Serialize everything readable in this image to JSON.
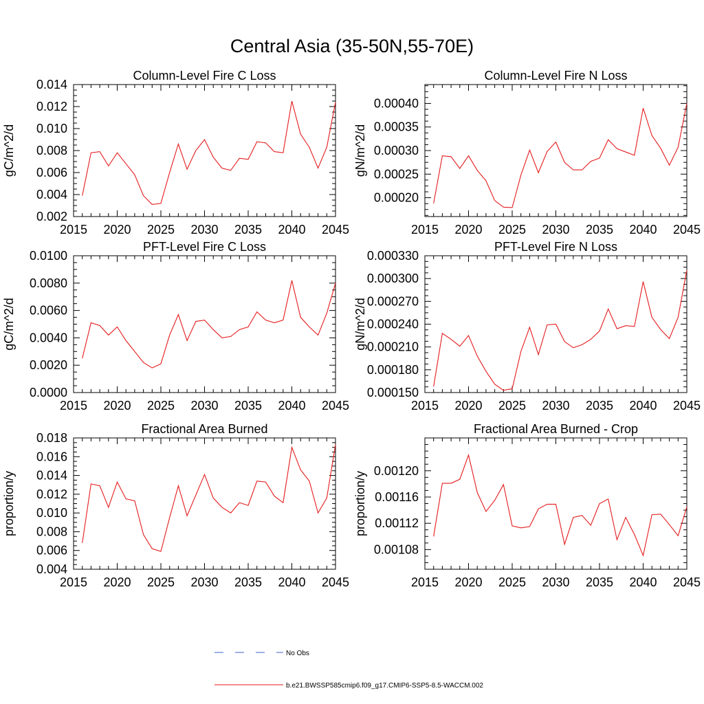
{
  "title": "Central Asia (35-50N,55-70E)",
  "colors": {
    "model_line": "#e41a1c",
    "obs_line": "#3a5fcd",
    "axis": "#000000"
  },
  "legend": {
    "obs_label": "No Obs",
    "model_label": "b.e21.BWSSP585cmip6.f09_g17.CMIP6-SSP5-8.5-WACCM.002",
    "placement": "bottom-center"
  },
  "chart_data": [
    {
      "type": "line",
      "title": "Column-Level Fire C Loss",
      "ylabel": "gC/m^2/d",
      "xlim": [
        2015,
        2045
      ],
      "ylim": [
        0.002,
        0.014
      ],
      "xticks": [
        "2015",
        "2020",
        "2025",
        "2030",
        "2035",
        "2040",
        "2045"
      ],
      "yticks": [
        "0.002",
        "0.004",
        "0.006",
        "0.008",
        "0.010",
        "0.012",
        "0.014"
      ],
      "x": [
        2016,
        2017,
        2018,
        2019,
        2020,
        2021,
        2022,
        2023,
        2024,
        2025,
        2026,
        2027,
        2028,
        2029,
        2030,
        2031,
        2032,
        2033,
        2034,
        2035,
        2036,
        2037,
        2038,
        2039,
        2040,
        2041,
        2042,
        2043,
        2044,
        2045
      ],
      "values": [
        0.0039,
        0.0078,
        0.0079,
        0.0066,
        0.0078,
        0.0068,
        0.0058,
        0.0039,
        0.0031,
        0.0032,
        0.006,
        0.0086,
        0.0063,
        0.008,
        0.009,
        0.0074,
        0.0064,
        0.0062,
        0.0073,
        0.0072,
        0.0088,
        0.0087,
        0.0079,
        0.0078,
        0.0125,
        0.0095,
        0.0083,
        0.0064,
        0.0083,
        0.0124
      ]
    },
    {
      "type": "line",
      "title": "Column-Level Fire N Loss",
      "ylabel": "gN/m^2/d",
      "xlim": [
        2015,
        2045
      ],
      "ylim": [
        0.00016,
        0.00044
      ],
      "xticks": [
        "2015",
        "2020",
        "2025",
        "2030",
        "2035",
        "2040",
        "2045"
      ],
      "yticks": [
        "0.00020",
        "0.00025",
        "0.00030",
        "0.00035",
        "0.00040"
      ],
      "ytick_values": [
        0.0002,
        0.00025,
        0.0003,
        0.00035,
        0.0004
      ],
      "x": [
        2016,
        2017,
        2018,
        2019,
        2020,
        2021,
        2022,
        2023,
        2024,
        2025,
        2026,
        2027,
        2028,
        2029,
        2030,
        2031,
        2032,
        2033,
        2034,
        2035,
        2036,
        2037,
        2038,
        2039,
        2040,
        2041,
        2042,
        2043,
        2044,
        2045
      ],
      "values": [
        0.000188,
        0.000289,
        0.000287,
        0.000262,
        0.000289,
        0.000258,
        0.000236,
        0.000194,
        0.00018,
        0.000179,
        0.000248,
        0.000301,
        0.000253,
        0.000298,
        0.000318,
        0.000275,
        0.000259,
        0.000259,
        0.000277,
        0.000284,
        0.000323,
        0.000304,
        0.000297,
        0.00029,
        0.00039,
        0.000332,
        0.000305,
        0.000269,
        0.000307,
        0.0004
      ]
    },
    {
      "type": "line",
      "title": "PFT-Level Fire C Loss",
      "ylabel": "gC/m^2/d",
      "xlim": [
        2015,
        2045
      ],
      "ylim": [
        0.0,
        0.01
      ],
      "xticks": [
        "2015",
        "2020",
        "2025",
        "2030",
        "2035",
        "2040",
        "2045"
      ],
      "yticks": [
        "0.0000",
        "0.0020",
        "0.0040",
        "0.0060",
        "0.0080",
        "0.0100"
      ],
      "x": [
        2016,
        2017,
        2018,
        2019,
        2020,
        2021,
        2022,
        2023,
        2024,
        2025,
        2026,
        2027,
        2028,
        2029,
        2030,
        2031,
        2032,
        2033,
        2034,
        2035,
        2036,
        2037,
        2038,
        2039,
        2040,
        2041,
        2042,
        2043,
        2044,
        2045
      ],
      "values": [
        0.0025,
        0.0051,
        0.0049,
        0.0042,
        0.0048,
        0.0038,
        0.003,
        0.0022,
        0.0018,
        0.0021,
        0.0042,
        0.0057,
        0.0038,
        0.0052,
        0.0053,
        0.0046,
        0.004,
        0.0041,
        0.0046,
        0.0048,
        0.0059,
        0.0053,
        0.0051,
        0.0053,
        0.0082,
        0.0055,
        0.0048,
        0.0042,
        0.0058,
        0.008
      ]
    },
    {
      "type": "line",
      "title": "PFT-Level Fire N Loss",
      "ylabel": "gN/m^2/d",
      "xlim": [
        2015,
        2045
      ],
      "ylim": [
        0.00015,
        0.00033
      ],
      "xticks": [
        "2015",
        "2020",
        "2025",
        "2030",
        "2035",
        "2040",
        "2045"
      ],
      "yticks": [
        "0.000150",
        "0.000180",
        "0.000210",
        "0.000240",
        "0.000270",
        "0.000300",
        "0.000330"
      ],
      "x": [
        2016,
        2017,
        2018,
        2019,
        2020,
        2021,
        2022,
        2023,
        2024,
        2025,
        2026,
        2027,
        2028,
        2029,
        2030,
        2031,
        2032,
        2033,
        2034,
        2035,
        2036,
        2037,
        2038,
        2039,
        2040,
        2041,
        2042,
        2043,
        2044,
        2045
      ],
      "values": [
        0.000158,
        0.000228,
        0.00022,
        0.000211,
        0.000225,
        0.000198,
        0.000178,
        0.000161,
        0.000153,
        0.000155,
        0.000204,
        0.000236,
        0.0002,
        0.000239,
        0.00024,
        0.000217,
        0.000209,
        0.000213,
        0.00022,
        0.000231,
        0.00026,
        0.000234,
        0.000238,
        0.000237,
        0.000296,
        0.000249,
        0.000233,
        0.000221,
        0.000249,
        0.000311
      ]
    },
    {
      "type": "line",
      "title": "Fractional Area Burned",
      "ylabel": "proportion/y",
      "xlim": [
        2015,
        2045
      ],
      "ylim": [
        0.004,
        0.018
      ],
      "xticks": [
        "2015",
        "2020",
        "2025",
        "2030",
        "2035",
        "2040",
        "2045"
      ],
      "yticks": [
        "0.004",
        "0.006",
        "0.008",
        "0.010",
        "0.012",
        "0.014",
        "0.016",
        "0.018"
      ],
      "x": [
        2016,
        2017,
        2018,
        2019,
        2020,
        2021,
        2022,
        2023,
        2024,
        2025,
        2026,
        2027,
        2028,
        2029,
        2030,
        2031,
        2032,
        2033,
        2034,
        2035,
        2036,
        2037,
        2038,
        2039,
        2040,
        2041,
        2042,
        2043,
        2044,
        2045
      ],
      "values": [
        0.0068,
        0.0131,
        0.0129,
        0.0106,
        0.0133,
        0.0115,
        0.0113,
        0.0077,
        0.0062,
        0.0059,
        0.0095,
        0.0129,
        0.0097,
        0.0119,
        0.0141,
        0.0116,
        0.0106,
        0.01,
        0.0111,
        0.0108,
        0.0134,
        0.0133,
        0.0118,
        0.0111,
        0.017,
        0.0146,
        0.0134,
        0.01,
        0.0116,
        0.0173
      ]
    },
    {
      "type": "line",
      "title": "Fractional Area Burned - Crop",
      "ylabel": "proportion/y",
      "xlim": [
        2015,
        2045
      ],
      "ylim": [
        0.00105,
        0.00125
      ],
      "xticks": [
        "2015",
        "2020",
        "2025",
        "2030",
        "2035",
        "2040",
        "2045"
      ],
      "yticks": [
        "0.00108",
        "0.00112",
        "0.00116",
        "0.00120"
      ],
      "ytick_values": [
        0.00108,
        0.00112,
        0.00116,
        0.0012
      ],
      "x": [
        2016,
        2017,
        2018,
        2019,
        2020,
        2021,
        2022,
        2023,
        2024,
        2025,
        2026,
        2027,
        2028,
        2029,
        2030,
        2031,
        2032,
        2033,
        2034,
        2035,
        2036,
        2037,
        2038,
        2039,
        2040,
        2041,
        2042,
        2043,
        2044,
        2045
      ],
      "values": [
        0.0011,
        0.001181,
        0.001181,
        0.001187,
        0.001224,
        0.001167,
        0.001138,
        0.001155,
        0.001179,
        0.001116,
        0.001113,
        0.001115,
        0.001142,
        0.001149,
        0.001149,
        0.001088,
        0.001129,
        0.001132,
        0.001117,
        0.00115,
        0.001157,
        0.001095,
        0.001129,
        0.001103,
        0.001071,
        0.001133,
        0.001134,
        0.001118,
        0.001101,
        0.001145
      ]
    }
  ]
}
